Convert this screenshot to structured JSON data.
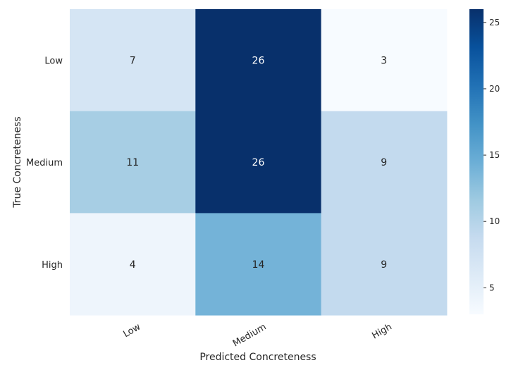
{
  "chart_data": {
    "type": "heatmap",
    "title": "",
    "xlabel": "Predicted Concreteness",
    "ylabel": "True Concreteness",
    "x_categories": [
      "Low",
      "Medium",
      "High"
    ],
    "y_categories": [
      "Low",
      "Medium",
      "High"
    ],
    "values": [
      [
        7,
        26,
        3
      ],
      [
        11,
        26,
        9
      ],
      [
        4,
        14,
        9
      ]
    ],
    "colormap": "Blues",
    "colormap_stops": [
      "#f7fbff",
      "#deebf7",
      "#c6dbef",
      "#9ecae1",
      "#6baed6",
      "#4292c6",
      "#2171b5",
      "#08519c",
      "#08306b"
    ],
    "vmin": 3,
    "vmax": 26,
    "colorbar": {
      "ticks": [
        5,
        10,
        15,
        20,
        25
      ],
      "tick_labels": [
        "5",
        "10",
        "15",
        "20",
        "25"
      ]
    },
    "annotations": true,
    "grid": false,
    "legend": "colorbar-right"
  }
}
